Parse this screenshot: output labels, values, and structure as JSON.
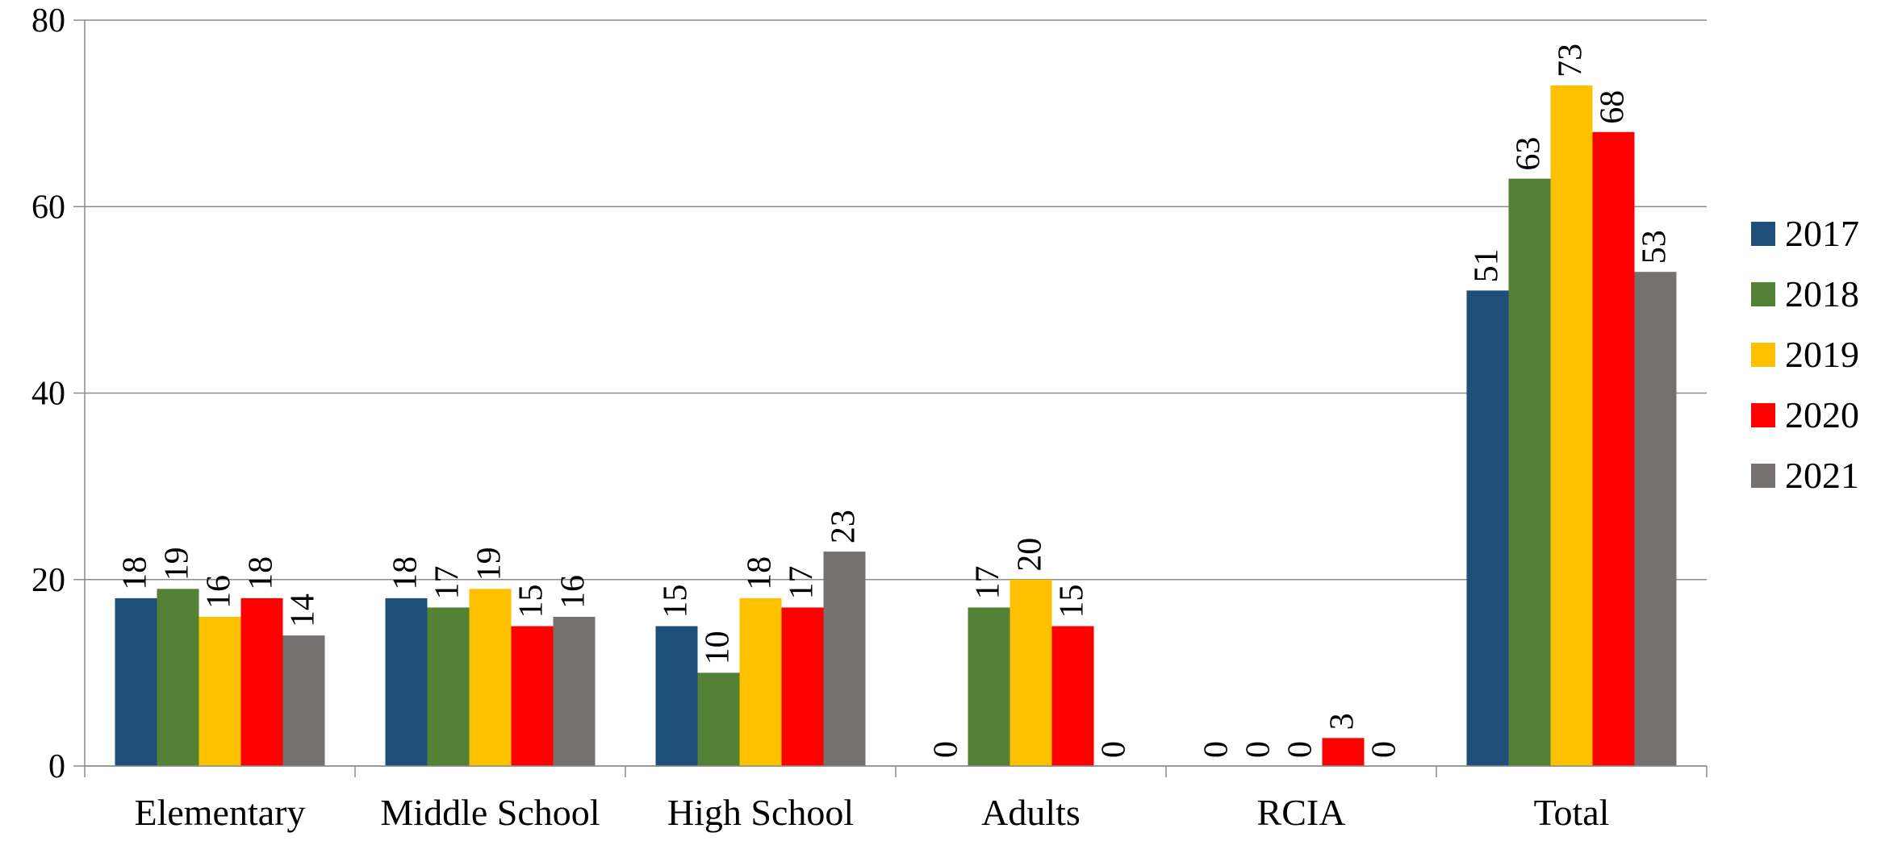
{
  "chart_data": {
    "type": "bar",
    "title": "",
    "xlabel": "",
    "ylabel": "",
    "categories": [
      "Elementary",
      "Middle School",
      "High School",
      "Adults",
      "RCIA",
      "Total"
    ],
    "series": [
      {
        "name": "2017",
        "color": "#1F4E79",
        "values": [
          18,
          18,
          15,
          0,
          0,
          51
        ]
      },
      {
        "name": "2018",
        "color": "#538135",
        "values": [
          19,
          17,
          10,
          17,
          0,
          63
        ]
      },
      {
        "name": "2019",
        "color": "#FFC000",
        "values": [
          16,
          19,
          18,
          20,
          0,
          73
        ]
      },
      {
        "name": "2020",
        "color": "#FF0000",
        "values": [
          18,
          15,
          17,
          15,
          3,
          68
        ]
      },
      {
        "name": "2021",
        "color": "#767171",
        "values": [
          14,
          16,
          23,
          0,
          0,
          53
        ]
      }
    ],
    "ylim": [
      0,
      80
    ],
    "yticks": [
      0,
      20,
      40,
      60,
      80
    ],
    "grid": true,
    "data_labels": true,
    "legend_position": "right"
  }
}
